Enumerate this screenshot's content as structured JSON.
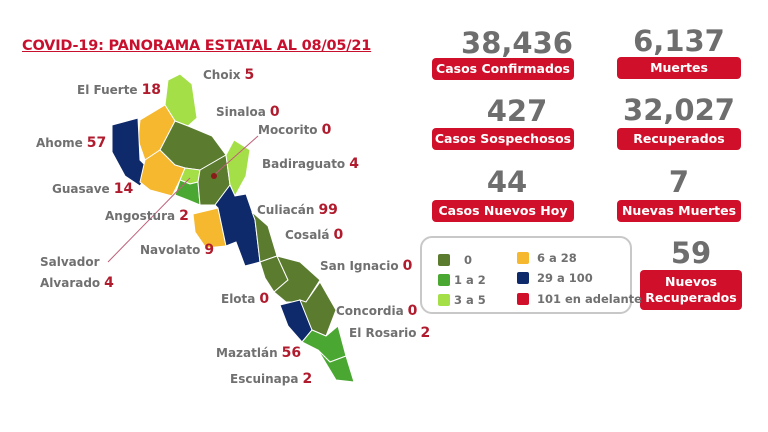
{
  "title": "COVID-19: PANORAMA ESTATAL AL 08/05/21",
  "colors": {
    "c0": "#5b7b2f",
    "c1_2": "#4aa832",
    "c3_5": "#a5df48",
    "c6_28": "#f5b82e",
    "c29_100": "#0e2a6a",
    "c101": "#d0102a",
    "accent": "#d0102a"
  },
  "municipios": [
    {
      "name": "Choix",
      "value": "5"
    },
    {
      "name": "El Fuerte",
      "value": "18"
    },
    {
      "name": "Sinaloa",
      "value": "0"
    },
    {
      "name": "Mocorito",
      "value": "0"
    },
    {
      "name": "Ahome",
      "value": "57"
    },
    {
      "name": "Badiraguato",
      "value": "4"
    },
    {
      "name": "Guasave",
      "value": "14"
    },
    {
      "name": "Culiacán",
      "value": "99"
    },
    {
      "name": "Angostura",
      "value": "2"
    },
    {
      "name": "Cosalá",
      "value": "0"
    },
    {
      "name": "Navolato",
      "value": "9"
    },
    {
      "name": "Salvador",
      "name2": "Alvarado",
      "value": "4"
    },
    {
      "name": "San Ignacio",
      "value": "0"
    },
    {
      "name": "Elota",
      "value": "0"
    },
    {
      "name": "Concordia",
      "value": "0"
    },
    {
      "name": "El Rosario",
      "value": "2"
    },
    {
      "name": "Mazatlán",
      "value": "56"
    },
    {
      "name": "Escuinapa",
      "value": "2"
    }
  ],
  "stats": [
    {
      "value": "38,436",
      "label": "Casos Confirmados"
    },
    {
      "value": "6,137",
      "label": "Muertes"
    },
    {
      "value": "427",
      "label": "Casos Sospechosos"
    },
    {
      "value": "32,027",
      "label": "Recuperados"
    },
    {
      "value": "44",
      "label": "Casos Nuevos Hoy"
    },
    {
      "value": "7",
      "label": "Nuevas Muertes"
    },
    {
      "value": "59",
      "label": "Nuevos",
      "label2": "Recuperados"
    }
  ],
  "legend": [
    {
      "label": "0",
      "color": "#5b7b2f"
    },
    {
      "label": "1 a 2",
      "color": "#4aa832"
    },
    {
      "label": "3 a 5",
      "color": "#a5df48"
    },
    {
      "label": "6 a 28",
      "color": "#f5b82e"
    },
    {
      "label": "29 a 100",
      "color": "#0e2a6a"
    },
    {
      "label": "101 en adelante",
      "color": "#d0102a"
    }
  ]
}
